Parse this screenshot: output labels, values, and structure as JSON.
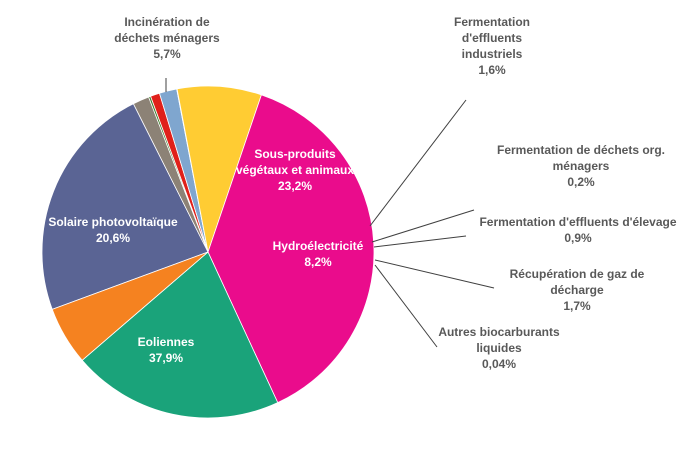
{
  "chart_data": {
    "type": "pie",
    "title": "",
    "slices": [
      {
        "name": "Sous-produits végétaux et animaux",
        "value": 23.2,
        "label": "23,2%",
        "lines": [
          "Sous-produits",
          "végétaux et animaux"
        ],
        "color": "#5a6494"
      },
      {
        "name": "Fermentation d'effluents industriels",
        "value": 1.6,
        "label": "1,6%",
        "lines": [
          "Fermentation",
          "d'effluents",
          "industriels"
        ],
        "color": "#8c8276"
      },
      {
        "name": "Fermentation de déchets org. ménagers",
        "value": 0.2,
        "label": "0,2%",
        "lines": [
          "Fermentation de déchets org.",
          "ménagers"
        ],
        "color": "#3f7d2e"
      },
      {
        "name": "Fermentation d'effluents d'élevage",
        "value": 0.9,
        "label": "0,9%",
        "lines": [
          "Fermentation d'effluents d'élevage"
        ],
        "color": "#e0201a"
      },
      {
        "name": "Récupération de gaz de décharge",
        "value": 1.7,
        "label": "1,7%",
        "lines": [
          "Récupération de gaz de",
          "décharge"
        ],
        "color": "#7fa6cf"
      },
      {
        "name": "Autres biocarburants liquides",
        "value": 0.04,
        "label": "0,04%",
        "lines": [
          "Autres biocarburants",
          "liquides"
        ],
        "color": "#3d6ea8"
      },
      {
        "name": "Hydroélectricité",
        "value": 8.2,
        "label": "8,2%",
        "lines": [
          "Hydroélectricité"
        ],
        "color": "#ffcc33"
      },
      {
        "name": "Eoliennes",
        "value": 37.9,
        "label": "37,9%",
        "lines": [
          "Eoliennes"
        ],
        "color": "#ea0c8c"
      },
      {
        "name": "Solaire photovoltaïque",
        "value": 20.6,
        "label": "20,6%",
        "lines": [
          "Solaire photovoltaïque"
        ],
        "color": "#1aa37a"
      },
      {
        "name": "Incinération de déchets ménagers",
        "value": 5.7,
        "label": "5,7%",
        "lines": [
          "Incinération de",
          "déchets ménagers"
        ],
        "color": "#f58220"
      }
    ]
  }
}
